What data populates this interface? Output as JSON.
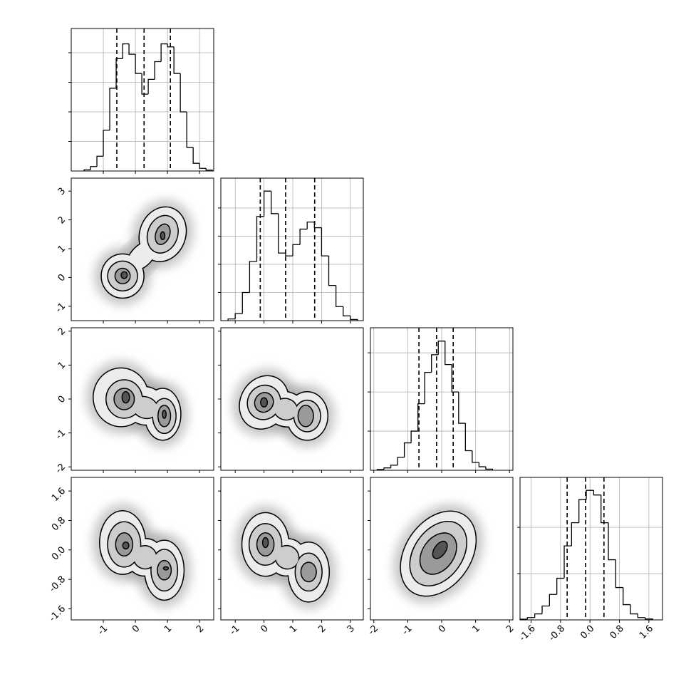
{
  "chart_data": {
    "type": "corner",
    "line_color": "#000000",
    "grid_color": "#b0b0b0",
    "cloud_color": "#9e9e9e",
    "contour_fills": [
      "#ececec",
      "#cdcdcd",
      "#9a9a9a",
      "#555555"
    ],
    "grid": true,
    "parameters": [
      {
        "xlim": [
          -2.0,
          2.44
        ],
        "ticks": [
          -1,
          0,
          1,
          2
        ],
        "quantiles": [
          -0.58,
          0.27,
          1.09
        ],
        "hist": {
          "bins": [
            -1.6,
            -1.4,
            -1.2,
            -1.0,
            -0.8,
            -0.6,
            -0.4,
            -0.2,
            0.0,
            0.2,
            0.4,
            0.6,
            0.8,
            1.0,
            1.2,
            1.4,
            1.6,
            1.8,
            2.0,
            2.2,
            2.4
          ],
          "counts": [
            40,
            150,
            500,
            1380,
            2800,
            3800,
            4300,
            3950,
            3300,
            2600,
            3100,
            3700,
            4300,
            4200,
            3300,
            2000,
            800,
            260,
            90,
            30
          ],
          "ylim": [
            0,
            4820
          ],
          "yticks": [
            1000,
            2000,
            3000,
            4000
          ]
        }
      },
      {
        "xlim": [
          -1.5,
          3.45
        ],
        "ticks": [
          -1,
          0,
          1,
          2,
          3
        ],
        "quantiles": [
          -0.13,
          0.75,
          1.76
        ],
        "hist": {
          "bins": [
            -1.25,
            -1.0,
            -0.75,
            -0.5,
            -0.25,
            0.0,
            0.25,
            0.5,
            0.75,
            1.0,
            1.25,
            1.5,
            1.75,
            2.0,
            2.25,
            2.5,
            2.75,
            3.0,
            3.25
          ],
          "counts": [
            60,
            250,
            1000,
            2100,
            3700,
            4600,
            3800,
            2400,
            2300,
            2700,
            3250,
            3500,
            3300,
            2300,
            1250,
            500,
            170,
            40
          ],
          "ylim": [
            0,
            5060
          ],
          "yticks": [
            1000,
            2000,
            3000,
            4000
          ]
        }
      },
      {
        "xlim": [
          -2.1,
          2.1
        ],
        "ticks": [
          -2,
          -1,
          0,
          1,
          2
        ],
        "quantiles": [
          -0.67,
          -0.15,
          0.34
        ],
        "hist": {
          "bins": [
            -1.9,
            -1.7,
            -1.5,
            -1.3,
            -1.1,
            -0.9,
            -0.7,
            -0.5,
            -0.3,
            -0.1,
            0.1,
            0.3,
            0.5,
            0.7,
            0.9,
            1.1,
            1.3,
            1.5
          ],
          "counts": [
            20,
            60,
            130,
            330,
            700,
            1000,
            1700,
            2500,
            2950,
            3300,
            2700,
            2000,
            1200,
            500,
            200,
            90,
            30
          ],
          "ylim": [
            0,
            3640
          ],
          "yticks": [
            1000,
            2000,
            3000
          ]
        }
      },
      {
        "xlim": [
          -1.9,
          1.97
        ],
        "ticks": [
          -1.6,
          -0.8,
          {
            "value": 0,
            "label": "0.0"
          },
          0.8,
          1.6
        ],
        "quantiles": [
          -0.62,
          -0.12,
          0.38
        ],
        "hist": {
          "bins": [
            -1.9,
            -1.7,
            -1.5,
            -1.3,
            -1.1,
            -0.9,
            -0.7,
            -0.5,
            -0.3,
            -0.1,
            0.1,
            0.3,
            0.5,
            0.7,
            0.9,
            1.1,
            1.3,
            1.5,
            1.7
          ],
          "counts": [
            15,
            50,
            130,
            300,
            550,
            900,
            1600,
            2100,
            2600,
            2800,
            2700,
            2100,
            1300,
            700,
            330,
            130,
            50,
            20
          ],
          "ylim": [
            0,
            3080
          ],
          "yticks": [
            1000,
            2000
          ]
        }
      }
    ],
    "pairs": [
      {
        "levels": [
          [
            {
              "cx": -0.4,
              "cy": 0.05,
              "rx": 0.65,
              "ry": 0.75,
              "angle": 0
            },
            {
              "cx": 0.85,
              "cy": 1.5,
              "rx": 0.7,
              "ry": 0.95,
              "angle": 20
            },
            {
              "cx": 0.2,
              "cy": 0.75,
              "rx": 0.55,
              "ry": 0.35,
              "angle": -45
            }
          ],
          [
            {
              "cx": -0.4,
              "cy": 0.05,
              "rx": 0.45,
              "ry": 0.5,
              "angle": 0
            },
            {
              "cx": 0.85,
              "cy": 1.5,
              "rx": 0.45,
              "ry": 0.65,
              "angle": 20
            }
          ],
          [
            {
              "cx": -0.4,
              "cy": 0.05,
              "rx": 0.22,
              "ry": 0.25,
              "angle": 0
            },
            {
              "cx": 0.85,
              "cy": 1.5,
              "rx": 0.2,
              "ry": 0.35,
              "angle": 20
            }
          ],
          [
            {
              "cx": -0.35,
              "cy": 0.08,
              "rx": 0.08,
              "ry": 0.1,
              "angle": 0
            },
            {
              "cx": 0.85,
              "cy": 1.45,
              "rx": 0.05,
              "ry": 0.12,
              "angle": 0
            }
          ]
        ]
      },
      {
        "levels": [
          [
            {
              "cx": -0.45,
              "cy": 0.05,
              "rx": 0.85,
              "ry": 0.85,
              "angle": 0
            },
            {
              "cx": 0.85,
              "cy": -0.45,
              "rx": 0.55,
              "ry": 0.75,
              "angle": 0
            },
            {
              "cx": 0.3,
              "cy": -0.2,
              "rx": 0.6,
              "ry": 0.55,
              "angle": 20
            }
          ],
          [
            {
              "cx": -0.35,
              "cy": 0.0,
              "rx": 0.55,
              "ry": 0.55,
              "angle": 0
            },
            {
              "cx": 0.9,
              "cy": -0.5,
              "rx": 0.35,
              "ry": 0.5,
              "angle": 0
            },
            {
              "cx": 0.3,
              "cy": -0.25,
              "rx": 0.4,
              "ry": 0.3,
              "angle": 20
            }
          ],
          [
            {
              "cx": -0.35,
              "cy": 0.0,
              "rx": 0.3,
              "ry": 0.3,
              "angle": 0
            },
            {
              "cx": 0.9,
              "cy": -0.5,
              "rx": 0.18,
              "ry": 0.3,
              "angle": 0
            }
          ],
          [
            {
              "cx": -0.3,
              "cy": 0.05,
              "rx": 0.1,
              "ry": 0.15,
              "angle": 0
            },
            {
              "cx": 0.9,
              "cy": -0.45,
              "rx": 0.04,
              "ry": 0.1,
              "angle": 0
            }
          ]
        ]
      },
      {
        "levels": [
          [
            {
              "cx": 0.0,
              "cy": -0.1,
              "rx": 0.8,
              "ry": 0.8,
              "angle": 30
            },
            {
              "cx": 1.5,
              "cy": -0.5,
              "rx": 0.7,
              "ry": 0.7,
              "angle": 0
            },
            {
              "cx": 0.75,
              "cy": -0.3,
              "rx": 0.7,
              "ry": 0.5,
              "angle": 18
            }
          ],
          [
            {
              "cx": 0.0,
              "cy": -0.1,
              "rx": 0.55,
              "ry": 0.5,
              "angle": 30
            },
            {
              "cx": 1.5,
              "cy": -0.5,
              "rx": 0.45,
              "ry": 0.45,
              "angle": 0
            },
            {
              "cx": 0.75,
              "cy": -0.3,
              "rx": 0.4,
              "ry": 0.3,
              "angle": 18
            }
          ],
          [
            {
              "cx": 0.0,
              "cy": -0.1,
              "rx": 0.3,
              "ry": 0.28,
              "angle": 30
            },
            {
              "cx": 1.45,
              "cy": -0.5,
              "rx": 0.25,
              "ry": 0.3,
              "angle": 0
            }
          ],
          [
            {
              "cx": 0.0,
              "cy": -0.1,
              "rx": 0.1,
              "ry": 0.12,
              "angle": 0
            }
          ]
        ]
      },
      {
        "levels": [
          [
            {
              "cx": -0.4,
              "cy": 0.2,
              "rx": 0.7,
              "ry": 0.85,
              "angle": 0
            },
            {
              "cx": 0.9,
              "cy": -0.55,
              "rx": 0.6,
              "ry": 0.8,
              "angle": 0
            },
            {
              "cx": 0.3,
              "cy": -0.2,
              "rx": 0.55,
              "ry": 0.5,
              "angle": 33
            }
          ],
          [
            {
              "cx": -0.35,
              "cy": 0.15,
              "rx": 0.5,
              "ry": 0.6,
              "angle": 0
            },
            {
              "cx": 0.9,
              "cy": -0.55,
              "rx": 0.4,
              "ry": 0.55,
              "angle": 0
            },
            {
              "cx": 0.3,
              "cy": -0.2,
              "rx": 0.35,
              "ry": 0.3,
              "angle": 33
            }
          ],
          [
            {
              "cx": -0.35,
              "cy": 0.15,
              "rx": 0.25,
              "ry": 0.3,
              "angle": 0
            },
            {
              "cx": 0.9,
              "cy": -0.55,
              "rx": 0.2,
              "ry": 0.25,
              "angle": 0
            }
          ],
          [
            {
              "cx": -0.3,
              "cy": 0.12,
              "rx": 0.08,
              "ry": 0.08,
              "angle": 0
            },
            {
              "cx": 0.95,
              "cy": -0.5,
              "rx": 0.06,
              "ry": 0.03,
              "angle": 0
            }
          ]
        ]
      },
      {
        "levels": [
          [
            {
              "cx": 0.05,
              "cy": 0.15,
              "rx": 0.8,
              "ry": 0.85,
              "angle": 0
            },
            {
              "cx": 1.55,
              "cy": -0.6,
              "rx": 0.7,
              "ry": 0.8,
              "angle": 0
            },
            {
              "cx": 0.8,
              "cy": -0.2,
              "rx": 0.6,
              "ry": 0.5,
              "angle": 30
            }
          ],
          [
            {
              "cx": 0.05,
              "cy": 0.15,
              "rx": 0.55,
              "ry": 0.55,
              "angle": 0
            },
            {
              "cx": 1.55,
              "cy": -0.6,
              "rx": 0.45,
              "ry": 0.5,
              "angle": 0
            },
            {
              "cx": 0.8,
              "cy": -0.2,
              "rx": 0.4,
              "ry": 0.3,
              "angle": 30
            }
          ],
          [
            {
              "cx": 0.05,
              "cy": 0.15,
              "rx": 0.28,
              "ry": 0.3,
              "angle": 0
            },
            {
              "cx": 1.55,
              "cy": -0.6,
              "rx": 0.25,
              "ry": 0.25,
              "angle": 0
            }
          ],
          [
            {
              "cx": 0.05,
              "cy": 0.2,
              "rx": 0.08,
              "ry": 0.12,
              "angle": 0
            }
          ]
        ]
      },
      {
        "levels": [
          [
            {
              "cx": -0.1,
              "cy": -0.1,
              "rx": 0.95,
              "ry": 1.25,
              "angle": 35
            }
          ],
          [
            {
              "cx": -0.1,
              "cy": -0.1,
              "rx": 0.7,
              "ry": 0.95,
              "angle": 35
            }
          ],
          [
            {
              "cx": -0.1,
              "cy": -0.1,
              "rx": 0.45,
              "ry": 0.6,
              "angle": 35
            }
          ],
          [
            {
              "cx": -0.05,
              "cy": 0.0,
              "rx": 0.15,
              "ry": 0.25,
              "angle": 35
            }
          ]
        ]
      }
    ]
  }
}
